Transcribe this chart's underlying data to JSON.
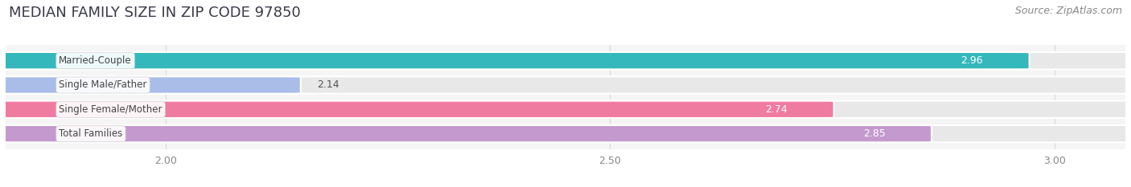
{
  "title": "MEDIAN FAMILY SIZE IN ZIP CODE 97850",
  "source": "Source: ZipAtlas.com",
  "categories": [
    "Married-Couple",
    "Single Male/Father",
    "Single Female/Mother",
    "Total Families"
  ],
  "values": [
    2.96,
    2.14,
    2.74,
    2.85
  ],
  "bar_colors": [
    "#35B8BC",
    "#AABDE8",
    "#F07BA0",
    "#C49ACE"
  ],
  "track_color": "#e8e8e8",
  "xlim_min": 1.82,
  "xlim_max": 3.08,
  "xdata_min": 2.0,
  "xdata_max": 3.0,
  "xticks": [
    2.0,
    2.5,
    3.0
  ],
  "xtick_labels": [
    "2.00",
    "2.50",
    "3.00"
  ],
  "bar_height": 0.68,
  "background_color": "#ffffff",
  "plot_bg_color": "#f5f5f5",
  "title_fontsize": 13,
  "source_fontsize": 9,
  "label_fontsize": 8.5,
  "value_fontsize": 9,
  "value_inside_color": "white",
  "value_outside_color": "#555555",
  "label_text_color": "#444444",
  "grid_color": "#d8d8d8",
  "tick_color": "#888888"
}
